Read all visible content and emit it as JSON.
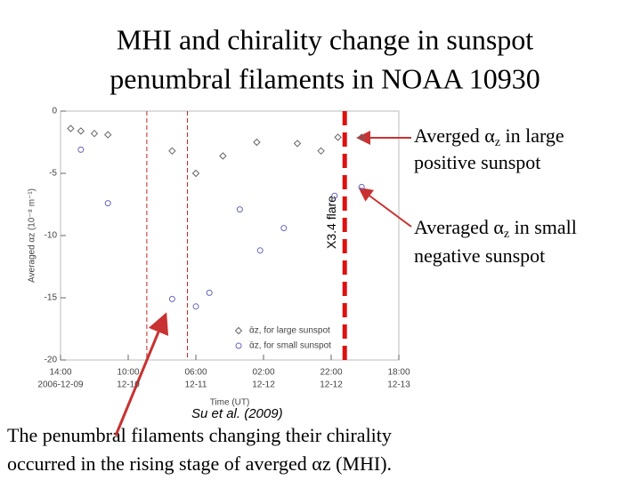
{
  "slide": {
    "title": [
      "MHI and chirality change in sunspot",
      "penumbral filaments in NOAA 10930"
    ],
    "note_large": [
      "Averged α",
      "z",
      " in large",
      "positive sunspot"
    ],
    "note_small": [
      "Averaged α",
      "z",
      " in small",
      "negative sunspot"
    ],
    "credit": "Su et al. (2009)",
    "footer": [
      "The penumbral filaments changing their chirality",
      "occurred in the rising stage of  averged αz (MHI)."
    ]
  },
  "chart_data": {
    "type": "scatter",
    "x_label": "Time (UT)",
    "y_label": "Averaged αz (10⁻⁸ m⁻¹)",
    "xlim": [
      "2006-12-09T14:00",
      "2006-12-13T18:00"
    ],
    "xticks": [
      {
        "value": "2006-12-09T14:00",
        "label": "14:00",
        "sublabel": "2006-12-09"
      },
      {
        "value": "2006-12-10T10:00",
        "label": "10:00",
        "sublabel": "12-10"
      },
      {
        "value": "2006-12-11T06:00",
        "label": "06:00",
        "sublabel": "12-11"
      },
      {
        "value": "2006-12-12T02:00",
        "label": "02:00",
        "sublabel": "12-12"
      },
      {
        "value": "2006-12-12T22:00",
        "label": "22:00",
        "sublabel": "12-12"
      },
      {
        "value": "2006-12-13T18:00",
        "label": "18:00",
        "sublabel": "12-13"
      }
    ],
    "ylim": [
      0,
      -20
    ],
    "yticks": [
      0,
      -5,
      -10,
      -15,
      -20
    ],
    "series": [
      {
        "name": "ᾱz, for large sunspot",
        "marker": "diamond",
        "color": "#666666",
        "x": [
          "2006-12-09T17:00",
          "2006-12-09T20:00",
          "2006-12-10T00:00",
          "2006-12-10T04:00",
          "2006-12-10T23:00",
          "2006-12-11T06:00",
          "2006-12-11T14:00",
          "2006-12-12T00:00",
          "2006-12-12T12:00",
          "2006-12-12T19:00",
          "2006-12-13T00:00",
          "2006-12-13T07:00"
        ],
        "values": [
          -1.4,
          -1.6,
          -1.8,
          -1.9,
          -3.2,
          -5.0,
          -3.6,
          -2.5,
          -2.6,
          -3.2,
          -2.1,
          -2.1
        ]
      },
      {
        "name": "ᾱz, for small sunspot",
        "marker": "circle",
        "color": "#6666bb",
        "x": [
          "2006-12-09T20:00",
          "2006-12-10T04:00",
          "2006-12-10T23:00",
          "2006-12-11T06:00",
          "2006-12-11T10:00",
          "2006-12-11T19:00",
          "2006-12-12T01:00",
          "2006-12-12T08:00",
          "2006-12-12T23:00",
          "2006-12-13T07:00"
        ],
        "values": [
          -3.1,
          -7.4,
          -15.1,
          -15.7,
          -14.6,
          -7.9,
          -11.2,
          -9.4,
          -6.8,
          -6.1
        ]
      }
    ],
    "vlines": [
      {
        "x": "2006-12-10T15:30",
        "color": "#cc2222",
        "width": 1
      },
      {
        "x": "2006-12-11T03:30",
        "color": "#cc2222",
        "width": 1
      },
      {
        "x": "2006-12-13T02:00",
        "color": "#dd1111",
        "width": 5,
        "label": "X3.4 flare"
      }
    ]
  }
}
